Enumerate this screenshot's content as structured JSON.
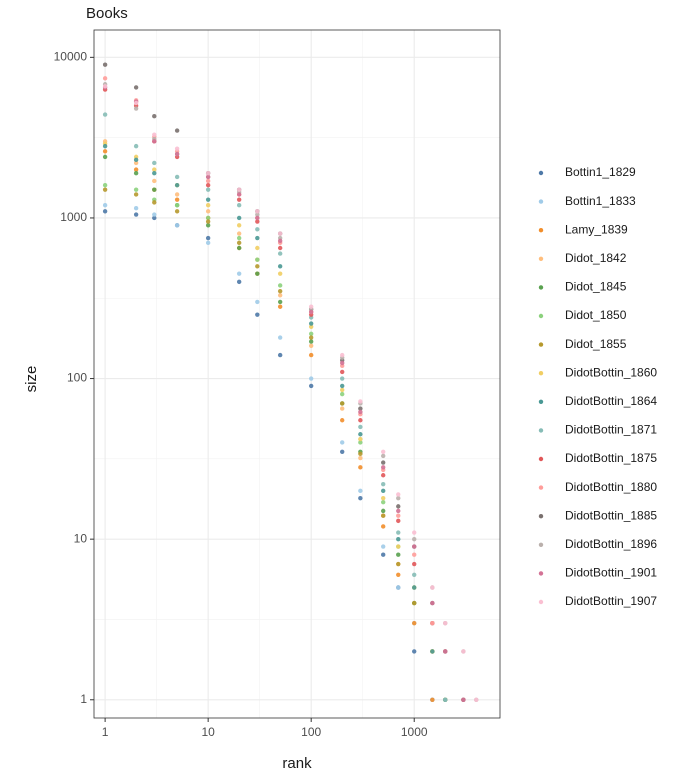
{
  "chart_data": {
    "type": "scatter",
    "title": "Books",
    "x_label": "rank",
    "y_label": "size",
    "log_x": true,
    "log_y": true,
    "grid": true,
    "legend": "right",
    "xlim": [
      0.78,
      6800
    ],
    "ylim": [
      0.77,
      14800
    ],
    "xticks": [
      1,
      10,
      100,
      1000
    ],
    "yticks": [
      1,
      10,
      100,
      1000,
      10000
    ],
    "x": [
      1,
      2,
      3,
      5,
      10,
      20,
      30,
      50,
      100,
      200,
      300,
      500,
      700,
      1000,
      1500,
      2000,
      3000,
      4000
    ],
    "series": [
      {
        "name": "Bottin1_1829",
        "color": "#4E79A7",
        "values": [
          1100,
          1050,
          1000,
          900,
          750,
          400,
          250,
          140,
          90,
          35,
          18,
          8,
          5,
          2,
          1,
          null,
          null,
          null
        ]
      },
      {
        "name": "Bottin1_1833",
        "color": "#A0CBE8",
        "values": [
          1200,
          1150,
          1050,
          900,
          700,
          450,
          300,
          180,
          100,
          40,
          20,
          9,
          5,
          3,
          1,
          null,
          null,
          null
        ]
      },
      {
        "name": "Lamy_1839",
        "color": "#F28E2B",
        "values": [
          2600,
          2000,
          1500,
          1300,
          1000,
          650,
          450,
          280,
          140,
          55,
          28,
          12,
          6,
          3,
          1,
          null,
          null,
          null
        ]
      },
      {
        "name": "Didot_1842",
        "color": "#FFBE7D",
        "values": [
          3000,
          2200,
          1700,
          1400,
          1100,
          800,
          550,
          330,
          160,
          65,
          32,
          14,
          7,
          4,
          2,
          1,
          null,
          null
        ]
      },
      {
        "name": "Didot_1845",
        "color": "#59A14F",
        "values": [
          2400,
          1900,
          1500,
          1200,
          900,
          650,
          450,
          300,
          170,
          70,
          35,
          15,
          8,
          4,
          2,
          1,
          null,
          null
        ]
      },
      {
        "name": "Didot_1850",
        "color": "#8CD17D",
        "values": [
          1600,
          1500,
          1300,
          1200,
          1000,
          750,
          550,
          380,
          190,
          80,
          40,
          17,
          9,
          5,
          2,
          1,
          null,
          null
        ]
      },
      {
        "name": "Didot_1855",
        "color": "#B6992D",
        "values": [
          1500,
          1400,
          1250,
          1100,
          950,
          700,
          500,
          350,
          180,
          70,
          34,
          14,
          7,
          4,
          2,
          1,
          null,
          null
        ]
      },
      {
        "name": "DidotBottin_1860",
        "color": "#F1CE63",
        "values": [
          2900,
          2400,
          2000,
          1600,
          1200,
          900,
          650,
          450,
          210,
          85,
          42,
          18,
          9,
          5,
          2,
          1,
          null,
          null
        ]
      },
      {
        "name": "DidotBottin_1864",
        "color": "#499894",
        "values": [
          2800,
          2300,
          1900,
          1600,
          1300,
          1000,
          750,
          500,
          220,
          90,
          45,
          20,
          10,
          5,
          2,
          1,
          null,
          null
        ]
      },
      {
        "name": "DidotBottin_1871",
        "color": "#86BCB6",
        "values": [
          4400,
          2800,
          2200,
          1800,
          1500,
          1200,
          850,
          600,
          240,
          100,
          50,
          22,
          11,
          6,
          3,
          1,
          null,
          null
        ]
      },
      {
        "name": "DidotBottin_1875",
        "color": "#E15759",
        "values": [
          6300,
          5000,
          3000,
          2400,
          1600,
          1300,
          950,
          650,
          250,
          110,
          55,
          25,
          13,
          7,
          3,
          2,
          1,
          null
        ]
      },
      {
        "name": "DidotBottin_1880",
        "color": "#FF9D9A",
        "values": [
          7400,
          5400,
          3200,
          2600,
          1700,
          1400,
          1000,
          700,
          260,
          120,
          60,
          27,
          14,
          8,
          3,
          2,
          1,
          null
        ]
      },
      {
        "name": "DidotBottin_1885",
        "color": "#79706E",
        "values": [
          9000,
          6500,
          4300,
          3500,
          1900,
          1500,
          1100,
          800,
          270,
          130,
          65,
          30,
          16,
          9,
          4,
          2,
          1,
          null
        ]
      },
      {
        "name": "DidotBottin_1896",
        "color": "#BAB0AC",
        "values": [
          6800,
          4800,
          3100,
          2500,
          1800,
          1450,
          1050,
          750,
          270,
          135,
          70,
          33,
          18,
          10,
          5,
          3,
          2,
          1
        ]
      },
      {
        "name": "DidotBottin_1901",
        "color": "#D37295",
        "values": [
          6500,
          5300,
          3000,
          2500,
          1800,
          1400,
          1000,
          720,
          260,
          125,
          62,
          28,
          15,
          9,
          4,
          2,
          1,
          null
        ]
      },
      {
        "name": "DidotBottin_1907",
        "color": "#FABFD2",
        "values": [
          6600,
          5200,
          3300,
          2700,
          1900,
          1500,
          1100,
          800,
          280,
          140,
          72,
          35,
          19,
          11,
          5,
          3,
          2,
          1
        ]
      }
    ]
  }
}
